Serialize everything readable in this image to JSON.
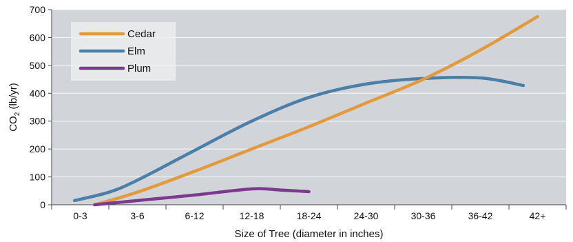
{
  "chart_data": {
    "type": "line",
    "xlabel": "Size of Tree (diameter in inches)",
    "ylabel": {
      "base": "CO",
      "sub": "2",
      "suffix": " (lb/yr)"
    },
    "categories": [
      "0-3",
      "3-6",
      "6-12",
      "12-18",
      "18-24",
      "24-30",
      "30-36",
      "36-42",
      "42+"
    ],
    "ylim": [
      0,
      700
    ],
    "yticks": [
      0,
      100,
      200,
      300,
      400,
      500,
      600,
      700
    ],
    "grid": true,
    "legend_position": "top-left",
    "colors": {
      "plot_bg": "#d1d4d8",
      "grid": "#f3f4f5",
      "axis": "#444444"
    },
    "series": [
      {
        "name": "Cedar",
        "color": "#e29a3a",
        "points": [
          [
            0.25,
            0
          ],
          [
            1,
            45
          ],
          [
            2,
            120
          ],
          [
            3,
            200
          ],
          [
            4,
            280
          ],
          [
            5,
            365
          ],
          [
            6,
            450
          ],
          [
            7,
            555
          ],
          [
            8,
            675
          ]
        ]
      },
      {
        "name": "Elm",
        "color": "#4a7fa7",
        "points": [
          [
            -0.1,
            15
          ],
          [
            0.5,
            45
          ],
          [
            1,
            88
          ],
          [
            2,
            195
          ],
          [
            3,
            300
          ],
          [
            4,
            385
          ],
          [
            5,
            433
          ],
          [
            6,
            453
          ],
          [
            7,
            455
          ],
          [
            7.75,
            428
          ]
        ]
      },
      {
        "name": "Plum",
        "color": "#7b3a8e",
        "points": [
          [
            0.25,
            0
          ],
          [
            1,
            15
          ],
          [
            2,
            35
          ],
          [
            3,
            57
          ],
          [
            3.5,
            53
          ],
          [
            4,
            47
          ]
        ]
      }
    ]
  }
}
